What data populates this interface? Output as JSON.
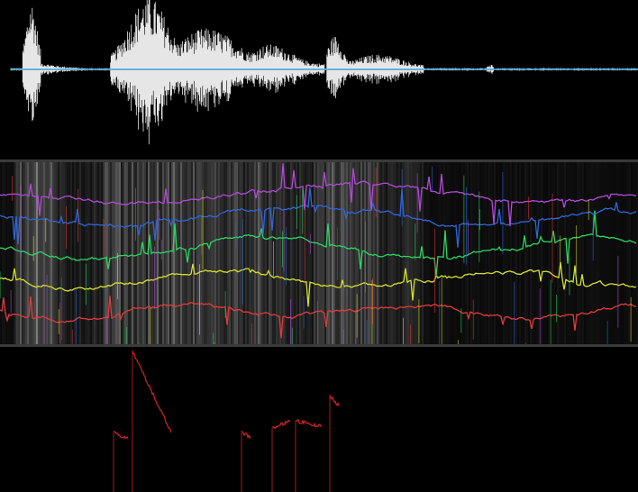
{
  "app": {
    "panels": [
      "waveform",
      "spectrogram-with-formants",
      "pitch-track"
    ]
  },
  "icons": {
    "waveform": "waveform-icon",
    "spectrogram": "spectrogram-icon",
    "pitch": "pitch-icon"
  },
  "colors": {
    "background": "#000000",
    "waveform": "#e6e6e6",
    "zero_line": "#3aa0d8",
    "formant1": "#e23b3b",
    "formant2": "#d6e02a",
    "formant3": "#2bd65f",
    "formant4": "#2f66d8",
    "formant5": "#b24ad8",
    "pitch": "#d02525"
  }
}
